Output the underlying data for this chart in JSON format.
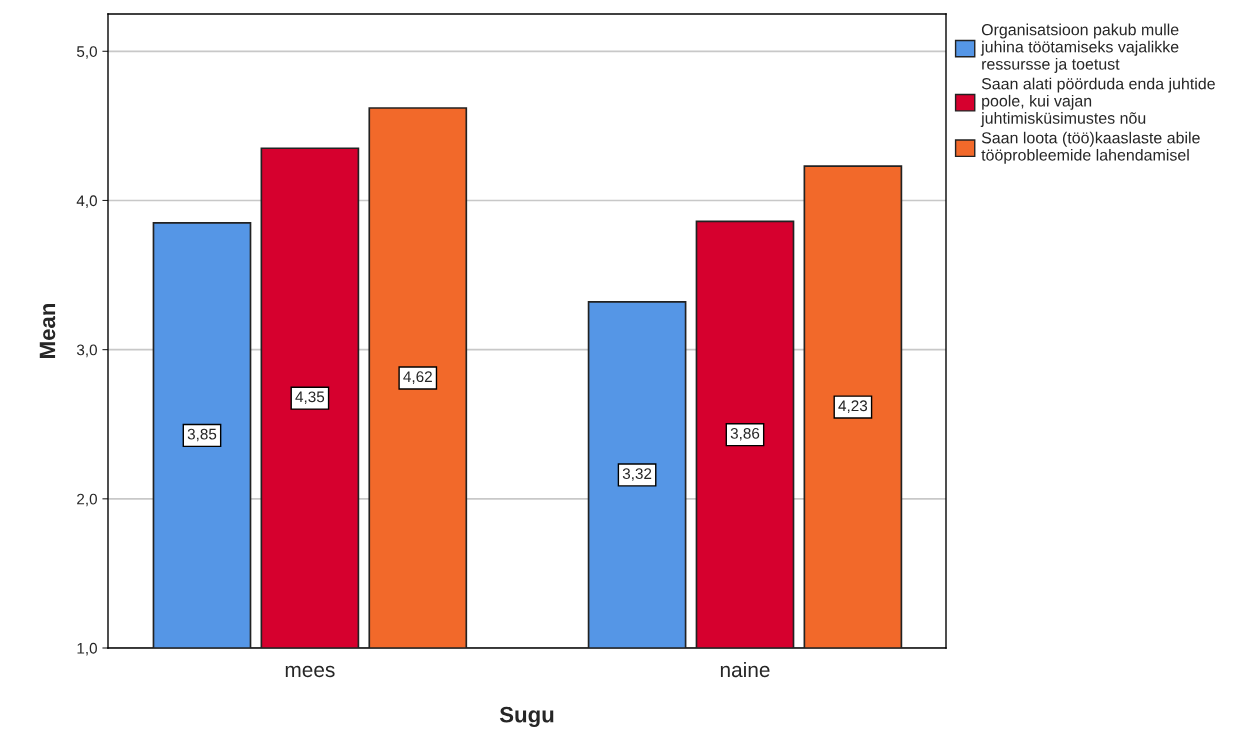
{
  "chart_data": {
    "type": "bar",
    "xlabel": "Sugu",
    "ylabel": "Mean",
    "categories": [
      "mees",
      "naine"
    ],
    "series": [
      {
        "name": "Organisatsioon pakub mulle\njuhina töötamiseks vajalikke\nressursse ja toetust",
        "color": "#5596e6",
        "values": [
          3.85,
          3.32
        ],
        "value_labels": [
          "3,85",
          "3,32"
        ]
      },
      {
        "name": "Saan alati pöörduda enda juhtide\npoole, kui vajan\njuhtimisküsimustes nõu",
        "color": "#d6002e",
        "values": [
          4.35,
          3.86
        ],
        "value_labels": [
          "4,35",
          "3,86"
        ]
      },
      {
        "name": "Saan loota (töö)kaaslaste abile\ntööprobleemide lahendamisel",
        "color": "#f2692a",
        "values": [
          4.62,
          4.23
        ],
        "value_labels": [
          "4,62",
          "4,23"
        ]
      }
    ],
    "ylim": [
      1,
      5.25
    ],
    "yticks": [
      {
        "value": 1,
        "label": "1,0"
      },
      {
        "value": 2,
        "label": "2,0"
      },
      {
        "value": 3,
        "label": "3,0"
      },
      {
        "value": 4,
        "label": "4,0"
      },
      {
        "value": 5,
        "label": "5,0"
      }
    ],
    "grid": "y",
    "legend": "right"
  }
}
